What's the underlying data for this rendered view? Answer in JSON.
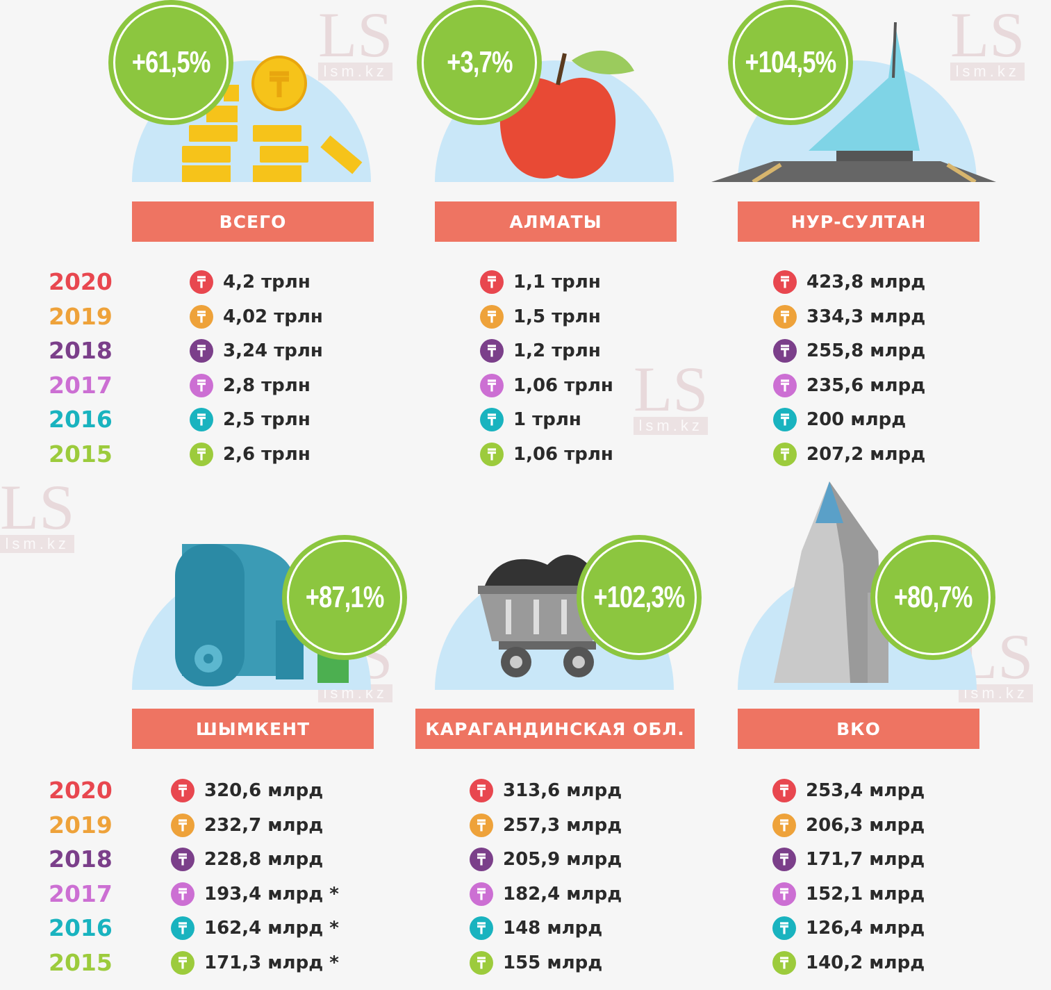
{
  "years": [
    "2020",
    "2019",
    "2018",
    "2017",
    "2016",
    "2015"
  ],
  "year_colors": [
    "#e8474f",
    "#eea23a",
    "#7b3f8a",
    "#cc6fd3",
    "#19b3bf",
    "#9ccb3c"
  ],
  "colors": {
    "badge": "#8cc63f",
    "label_bg": "#ee7462",
    "dome": "#c9e7f8"
  },
  "watermark": {
    "logo": "LS",
    "site": "lsm.kz"
  },
  "panels": [
    {
      "title": "ВСЕГО",
      "growth": "+61,5%",
      "icon": "coins-icon",
      "values": [
        "4,2 трлн",
        "4,02 трлн",
        "3,24 трлн",
        "2,8 трлн",
        "2,5 трлн",
        "2,6 трлн"
      ]
    },
    {
      "title": "АЛМАТЫ",
      "growth": "+3,7%",
      "icon": "apple-icon",
      "values": [
        "1,1 трлн",
        "1,5 трлн",
        "1,2 трлн",
        "1,06 трлн",
        "1 трлн",
        "1,06 трлн"
      ]
    },
    {
      "title": "НУР-СУЛТАН",
      "growth": "+104,5%",
      "icon": "khan-shatyr-icon",
      "values": [
        "423,8 млрд",
        "334,3 млрд",
        "255,8 млрд",
        "235,6 млрд",
        "200 млрд",
        "207,2 млрд"
      ]
    },
    {
      "title": "ШЫМКЕНТ",
      "growth": "+87,1%",
      "icon": "fabric-roll-icon",
      "values": [
        "320,6 млрд",
        "232,7 млрд",
        "228,8 млрд",
        "193,4 млрд *",
        "162,4 млрд *",
        "171,3 млрд *"
      ]
    },
    {
      "title": "КАРАГАНДИНСКАЯ ОБЛ.",
      "growth": "+102,3%",
      "icon": "coal-cart-icon",
      "values": [
        "313,6 млрд",
        "257,3 млрд",
        "205,9 млрд",
        "182,4 млрд",
        "148 млрд",
        "155 млрд"
      ]
    },
    {
      "title": "ВКО",
      "growth": "+80,7%",
      "icon": "mountain-icon",
      "values": [
        "253,4 млрд",
        "206,3 млрд",
        "171,7 млрд",
        "152,1 млрд",
        "126,4 млрд",
        "140,2 млрд"
      ]
    }
  ]
}
